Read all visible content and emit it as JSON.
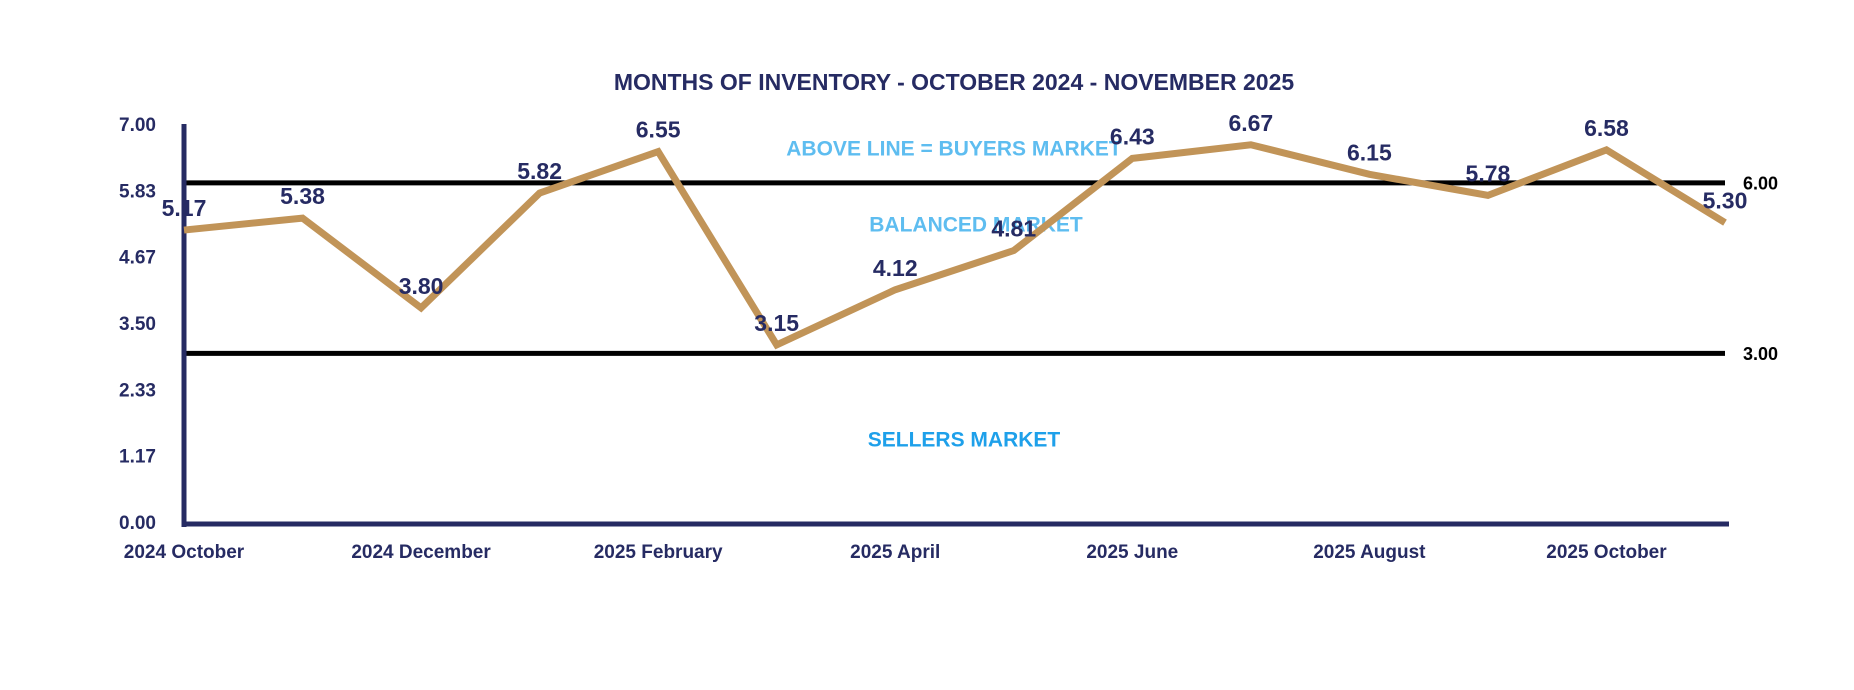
{
  "chart_data": {
    "type": "line",
    "title": "MONTHS OF INVENTORY - OCTOBER 2024 - NOVEMBER 2025",
    "categories": [
      "2024 October",
      null,
      "2024 December",
      null,
      "2025 February",
      null,
      "2025 April",
      null,
      "2025 June",
      null,
      "2025 August",
      null,
      "2025 October",
      null
    ],
    "values": [
      5.17,
      5.38,
      3.8,
      5.82,
      6.55,
      3.15,
      4.12,
      4.81,
      6.43,
      6.67,
      6.15,
      5.78,
      6.58,
      5.3
    ],
    "value_labels": [
      "5.17",
      "5.38",
      "3.80",
      "5.82",
      "6.55",
      "3.15",
      "4.12",
      "4.81",
      "6.43",
      "6.67",
      "6.15",
      "5.78",
      "6.58",
      "5.30"
    ],
    "color": "#c19458",
    "ylim": [
      0,
      7
    ],
    "yticks": [
      {
        "value": 0,
        "label": "0.00"
      },
      {
        "value": 1.17,
        "label": "1.17"
      },
      {
        "value": 2.33,
        "label": "2.33"
      },
      {
        "value": 3.5,
        "label": "3.50"
      },
      {
        "value": 4.67,
        "label": "4.67"
      },
      {
        "value": 5.83,
        "label": "5.83"
      },
      {
        "value": 7,
        "label": "7.00"
      }
    ],
    "reference_lines": [
      {
        "value": 6,
        "label": "6.00"
      },
      {
        "value": 3,
        "label": "3.00"
      }
    ],
    "annotations": [
      {
        "text": "ABOVE LINE = BUYERS MARKET",
        "color": "#5ebdf0"
      },
      {
        "text": "BALANCED MARKET",
        "color": "#5ebdf0"
      },
      {
        "text": "SELLERS MARKET",
        "color": "#1ea0ea"
      }
    ]
  }
}
